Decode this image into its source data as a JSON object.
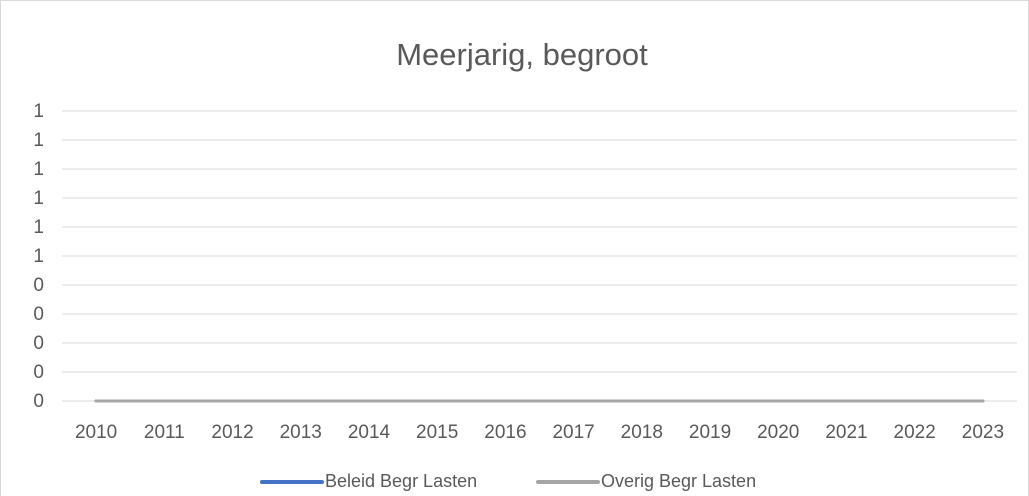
{
  "chart_data": {
    "type": "line",
    "title": "Meerjarig, begroot",
    "categories": [
      "2010",
      "2011",
      "2012",
      "2013",
      "2014",
      "2015",
      "2016",
      "2017",
      "2018",
      "2019",
      "2020",
      "2021",
      "2022",
      "2023"
    ],
    "series": [
      {
        "name": "Beleid Begr Lasten",
        "color": "#4472c4",
        "values": [
          0,
          0,
          0,
          0,
          0,
          0,
          0,
          0,
          0,
          0,
          0,
          0,
          0,
          0
        ]
      },
      {
        "name": "Overig Begr Lasten",
        "color": "#a5a5a5",
        "values": [
          0,
          0,
          0,
          0,
          0,
          0,
          0,
          0,
          0,
          0,
          0,
          0,
          0,
          0
        ]
      }
    ],
    "ylim": [
      0,
      1
    ],
    "yticks": [
      0,
      {
        "value": 0.1,
        "label": "0"
      },
      {
        "value": 0.2,
        "label": "0"
      },
      {
        "value": 0.3,
        "label": "0"
      },
      {
        "value": 0.4,
        "label": "0"
      },
      {
        "value": 0.5,
        "label": "1"
      },
      {
        "value": 0.6,
        "label": "1"
      },
      {
        "value": 0.7,
        "label": "1"
      },
      {
        "value": 0.8,
        "label": "1"
      },
      {
        "value": 0.9,
        "label": "1"
      },
      1
    ],
    "grid": true,
    "legend": "bottom"
  }
}
